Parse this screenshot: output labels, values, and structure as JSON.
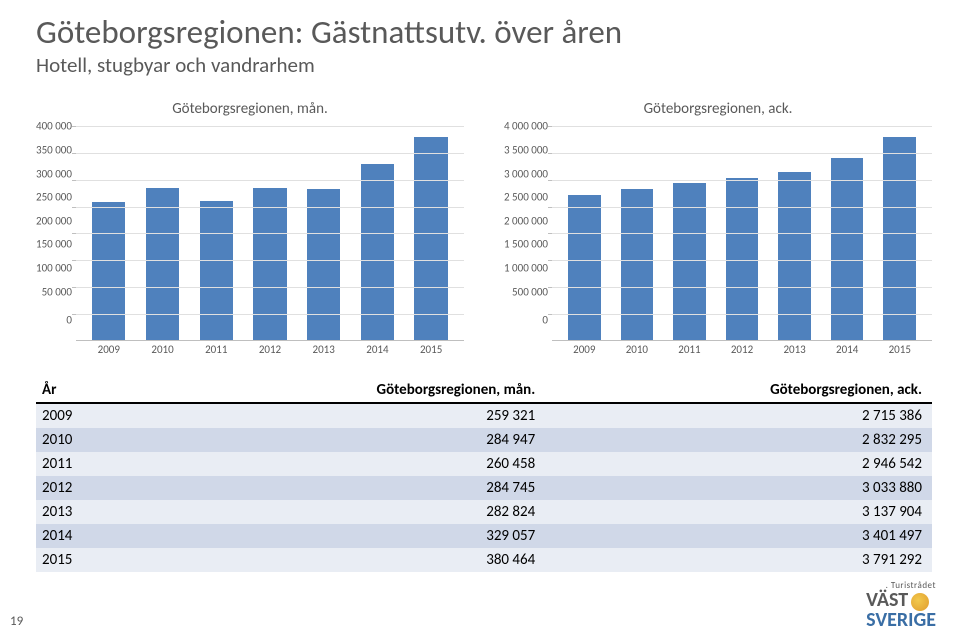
{
  "title": "Göteborgsregionen: Gästnattsutv. över åren",
  "subtitle": "Hotell, stugbyar och vandrarhem",
  "chart_left": {
    "type": "bar",
    "title": "Göteborgsregionen, mån.",
    "categories": [
      "2009",
      "2010",
      "2011",
      "2012",
      "2013",
      "2014",
      "2015"
    ],
    "values": [
      259321,
      284947,
      260458,
      284745,
      282824,
      329057,
      380464
    ],
    "bar_color": "#4f81bd",
    "ylim": [
      0,
      400000
    ],
    "ytick_step": 50000,
    "ytick_labels": [
      "400 000",
      "350 000",
      "300 000",
      "250 000",
      "200 000",
      "150 000",
      "100 000",
      "50 000",
      "0"
    ],
    "background_color": "#ffffff",
    "grid_color": "#e0e0e0",
    "axis_color": "#bfbfbf",
    "label_color": "#595959",
    "title_fontsize": 15,
    "tick_fontsize": 11
  },
  "chart_right": {
    "type": "bar",
    "title": "Göteborgsregionen, ack.",
    "categories": [
      "2009",
      "2010",
      "2011",
      "2012",
      "2013",
      "2014",
      "2015"
    ],
    "values": [
      2715386,
      2832295,
      2946542,
      3033880,
      3137904,
      3401497,
      3791292
    ],
    "bar_color": "#4f81bd",
    "ylim": [
      0,
      4000000
    ],
    "ytick_step": 500000,
    "ytick_labels": [
      "4 000 000",
      "3 500 000",
      "3 000 000",
      "2 500 000",
      "2 000 000",
      "1 500 000",
      "1 000 000",
      "500 000",
      "0"
    ],
    "background_color": "#ffffff",
    "grid_color": "#e0e0e0",
    "axis_color": "#bfbfbf",
    "label_color": "#595959",
    "title_fontsize": 15,
    "tick_fontsize": 11
  },
  "table": {
    "columns": [
      "År",
      "Göteborgsregionen, mån.",
      "Göteborgsregionen, ack."
    ],
    "rows": [
      [
        "2009",
        "259 321",
        "2 715 386"
      ],
      [
        "2010",
        "284 947",
        "2 832 295"
      ],
      [
        "2011",
        "260 458",
        "2 946 542"
      ],
      [
        "2012",
        "284 745",
        "3 033 880"
      ],
      [
        "2013",
        "282 824",
        "3 137 904"
      ],
      [
        "2014",
        "329 057",
        "3 401 497"
      ],
      [
        "2015",
        "380 464",
        "3 791 292"
      ]
    ],
    "header_bg": "#ffffff",
    "row_odd_bg": "#e9edf4",
    "row_even_bg": "#d0d8e8",
    "border_color": "#000000",
    "font_size": 15
  },
  "footer": {
    "page_number": "19",
    "logo_small": ". Turistrådet",
    "logo_line1": "VÄST",
    "logo_line2": "SVERIGE"
  }
}
